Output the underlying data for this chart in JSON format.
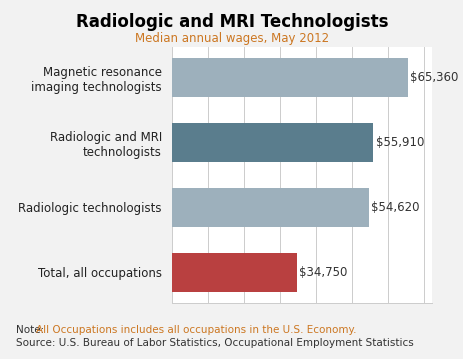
{
  "title": "Radiologic and MRI Technologists",
  "subtitle": "Median annual wages, May 2012",
  "categories": [
    "Total, all occupations",
    "Radiologic technologists",
    "Radiologic and MRI\ntechnologists",
    "Magnetic resonance\nimaging technologists"
  ],
  "values": [
    34750,
    54620,
    55910,
    65360
  ],
  "labels": [
    "$34,750",
    "$54,620",
    "$55,910",
    "$65,360"
  ],
  "bar_colors": [
    "#b94040",
    "#9db0bc",
    "#5a7d8d",
    "#9db0bc"
  ],
  "xlim": [
    0,
    72000
  ],
  "xticks": [
    0,
    10000,
    20000,
    30000,
    40000,
    50000,
    60000,
    70000
  ],
  "note_prefix": "Note: ",
  "note_highlight": "All Occupations includes all occupations in the U.S. Economy.",
  "note_line2": "Source: U.S. Bureau of Labor Statistics, Occupational Employment Statistics",
  "bg_color": "#f2f2f2",
  "plot_bg_color": "#ffffff",
  "title_color": "#000000",
  "subtitle_color": "#cc7722",
  "label_color": "#333333",
  "note_color": "#333333",
  "highlight_color": "#cc7722",
  "grid_color": "#cccccc"
}
